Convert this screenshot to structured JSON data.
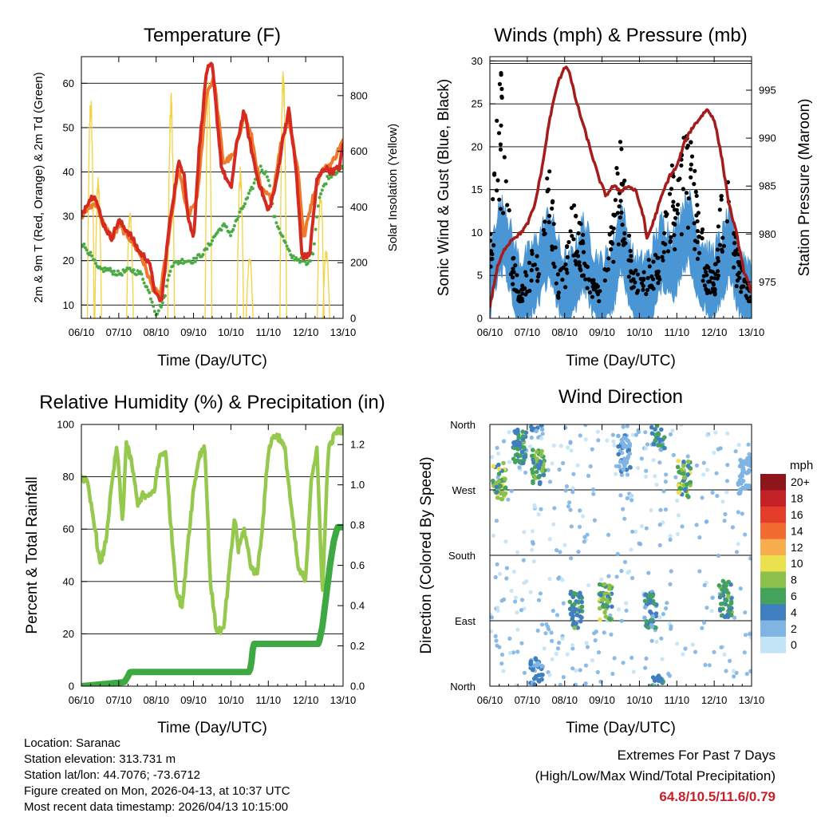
{
  "panels": {
    "temperature": {
      "title": "Temperature (F)",
      "xlabel": "Time (Day/UTC)",
      "ylabel_left": "2m & 9m T (Red, Orange) & 2m Td (Green)",
      "ylabel_right": "Solar Insolation (Yellow)"
    },
    "winds": {
      "title": "Winds (mph) & Pressure (mb)",
      "xlabel": "Time (Day/UTC)",
      "ylabel_left": "Sonic Wind & Gust (Blue, Black)",
      "ylabel_right": "Station Pressure (Maroon)"
    },
    "humidity": {
      "title": "Relative Humidity (%) & Precipitation (in)",
      "xlabel": "Time (Day/UTC)",
      "ylabel_left": "Percent & Total Rainfall"
    },
    "direction": {
      "title": "Wind Direction",
      "xlabel": "Time (Day/UTC)",
      "ylabel_left": "Direction (Colored By Speed)",
      "legend_title": "mph"
    }
  },
  "info": {
    "location": "Location: Saranac",
    "elevation": "Station elevation: 313.731 m",
    "latlon": "Station lat/lon: 44.7076; -73.6712",
    "created": "Figure created on Mon, 2026-04-13, at 10:37 UTC",
    "recent": "Most recent data timestamp: 2026/04/13 10:15:00"
  },
  "extremes": {
    "title": "Extremes For Past 7 Days",
    "subtitle": "(High/Low/Max Wind/Total Precipitation)",
    "values": "64.8/10.5/11.6/0.79"
  },
  "chart_data": [
    {
      "type": "line",
      "panel": "temperature",
      "x_ticks": [
        "06/10",
        "07/10",
        "08/10",
        "09/10",
        "10/10",
        "11/10",
        "12/10",
        "13/10"
      ],
      "x_range_days": [
        0,
        7
      ],
      "ylim": [
        7,
        66
      ],
      "yticks": [
        10,
        20,
        30,
        40,
        50,
        60
      ],
      "y2lim": [
        0,
        940
      ],
      "y2ticks": [
        0,
        200,
        400,
        600,
        800
      ],
      "series": [
        {
          "name": "2m T",
          "color": "#d42a20",
          "x": [
            0,
            0.15,
            0.35,
            0.55,
            0.8,
            1.0,
            1.3,
            1.55,
            1.8,
            2.0,
            2.15,
            2.35,
            2.6,
            2.75,
            2.85,
            3.0,
            3.15,
            3.35,
            3.5,
            3.75,
            4.0,
            4.15,
            4.35,
            4.5,
            4.7,
            5.0,
            5.2,
            5.4,
            5.55,
            5.75,
            5.9,
            6.1,
            6.3,
            6.5,
            6.7,
            6.9,
            7.0
          ],
          "values": [
            30,
            33,
            35,
            29,
            25,
            29,
            26,
            22,
            20,
            12,
            11,
            28,
            42,
            40,
            30,
            25,
            45,
            63,
            64,
            41,
            36,
            46,
            54,
            47,
            39,
            31,
            37,
            48,
            54,
            40,
            21,
            21,
            38,
            41,
            40,
            41,
            46
          ]
        },
        {
          "name": "9m T",
          "color": "#f07a2c",
          "x": [
            0,
            0.2,
            0.4,
            0.6,
            0.85,
            1.0,
            1.3,
            1.6,
            1.9,
            2.1,
            2.35,
            2.6,
            2.85,
            3.1,
            3.35,
            3.55,
            3.8,
            4.1,
            4.35,
            4.55,
            4.8,
            5.1,
            5.35,
            5.55,
            5.8,
            5.95,
            6.15,
            6.4,
            6.7,
            7.0
          ],
          "values": [
            30,
            32,
            33,
            28,
            25,
            28,
            25,
            21,
            14,
            12,
            26,
            41,
            30,
            34,
            58,
            61,
            42,
            44,
            53,
            48,
            36,
            34,
            47,
            52,
            40,
            25,
            33,
            40,
            42,
            47
          ]
        },
        {
          "name": "2m Td",
          "color": "#4aab45",
          "x": [
            0,
            0.2,
            0.45,
            0.7,
            1.0,
            1.3,
            1.6,
            1.85,
            2.0,
            2.2,
            2.4,
            2.7,
            3.0,
            3.3,
            3.6,
            3.8,
            4.0,
            4.2,
            4.5,
            4.8,
            5.0,
            5.15,
            5.3,
            5.6,
            5.9,
            6.05,
            6.2,
            6.35,
            6.6,
            7.0
          ],
          "values": [
            24,
            22,
            18,
            18,
            17,
            18,
            17,
            12,
            8,
            11,
            19,
            20,
            20,
            22,
            26,
            28,
            26,
            30,
            35,
            41,
            39,
            30,
            27,
            21,
            20,
            19,
            22,
            34,
            39,
            41
          ]
        },
        {
          "name": "Solar Insolation",
          "color": "#f4d240",
          "axis": "right",
          "peaks": [
            [
              0.25,
              820
            ],
            [
              0.45,
              520
            ],
            [
              1.3,
              400
            ],
            [
              2.4,
              830
            ],
            [
              3.4,
              890
            ],
            [
              4.25,
              550
            ],
            [
              4.5,
              230
            ],
            [
              5.4,
              920
            ],
            [
              6.4,
              480
            ],
            [
              6.55,
              250
            ]
          ]
        }
      ]
    },
    {
      "type": "line",
      "panel": "winds",
      "x_ticks": [
        "06/10",
        "07/10",
        "08/10",
        "09/10",
        "10/10",
        "11/10",
        "12/10",
        "13/10"
      ],
      "x_range_days": [
        0,
        7
      ],
      "ylim": [
        0,
        30.5
      ],
      "yticks": [
        0,
        5,
        10,
        15,
        20,
        25,
        30
      ],
      "y2lim": [
        971.2,
        998.5
      ],
      "y2ticks": [
        975,
        980,
        985,
        990,
        995
      ],
      "series": [
        {
          "name": "Sonic Wind",
          "color": "#4a96d4",
          "x": [
            0,
            0.2,
            0.4,
            0.6,
            0.8,
            1.0,
            1.3,
            1.6,
            1.9,
            2.1,
            2.3,
            2.5,
            2.8,
            3.0,
            3.3,
            3.5,
            3.8,
            4.0,
            4.3,
            4.6,
            4.9,
            5.1,
            5.3,
            5.6,
            5.9,
            6.2,
            6.4,
            6.7,
            7.0
          ],
          "values": [
            3,
            8,
            9,
            5,
            2,
            3,
            5,
            8,
            3,
            2,
            4,
            7,
            3,
            2,
            4,
            9,
            3,
            2,
            3,
            7,
            5,
            8,
            10,
            5,
            3,
            5,
            8,
            3,
            2
          ]
        },
        {
          "name": "Gust",
          "color": "#000000",
          "style": "markers",
          "x": [
            0,
            0.1,
            0.2,
            0.3,
            0.4,
            0.6,
            0.8,
            1.0,
            1.3,
            1.5,
            1.6,
            1.8,
            2.0,
            2.2,
            2.4,
            2.7,
            3.0,
            3.2,
            3.4,
            3.5,
            3.8,
            4.0,
            4.3,
            4.6,
            4.8,
            5.0,
            5.1,
            5.2,
            5.3,
            5.6,
            5.8,
            6.0,
            6.2,
            6.4,
            6.6,
            6.8,
            7.0
          ],
          "values": [
            8,
            18,
            23,
            28,
            20,
            8,
            3,
            6,
            10,
            16,
            20,
            5,
            6,
            13,
            12,
            5,
            3,
            10,
            18,
            20,
            6,
            5,
            7,
            8,
            19,
            14,
            18,
            24,
            22,
            13,
            6,
            5,
            15,
            21,
            8,
            6,
            3
          ]
        },
        {
          "name": "Station Pressure",
          "color": "#a51c1c",
          "axis": "right",
          "x": [
            0,
            0.2,
            0.4,
            0.6,
            0.8,
            1.0,
            1.2,
            1.4,
            1.6,
            1.8,
            2.0,
            2.1,
            2.3,
            2.6,
            2.9,
            3.1,
            3.3,
            3.5,
            3.7,
            3.9,
            4.1,
            4.2,
            4.35,
            4.6,
            4.8,
            5.0,
            5.2,
            5.4,
            5.6,
            5.8,
            6.0,
            6.2,
            6.4,
            6.6,
            6.8,
            7.0
          ],
          "values": [
            972.5,
            976.5,
            978.5,
            979.5,
            980,
            981,
            983,
            987,
            992,
            995.5,
            997.5,
            997.2,
            994,
            990,
            986,
            984,
            985,
            984.5,
            985,
            984.5,
            982,
            979.5,
            981,
            984,
            986,
            987,
            989.5,
            991,
            992,
            993,
            992,
            988,
            983,
            980,
            976,
            974
          ]
        }
      ]
    },
    {
      "type": "line",
      "panel": "humidity",
      "x_ticks": [
        "06/10",
        "07/10",
        "08/10",
        "09/10",
        "10/10",
        "11/10",
        "12/10",
        "13/10"
      ],
      "x_range_days": [
        0,
        7
      ],
      "ylim": [
        0,
        100
      ],
      "yticks": [
        0,
        20,
        40,
        60,
        80,
        100
      ],
      "y2lim": [
        0,
        1.3
      ],
      "y2ticks": [
        0.0,
        0.2,
        0.4,
        0.6,
        0.8,
        1.0,
        1.2
      ],
      "series": [
        {
          "name": "Relative Humidity",
          "color": "#95c94e",
          "x": [
            0,
            0.15,
            0.35,
            0.5,
            0.65,
            0.8,
            0.95,
            1.1,
            1.2,
            1.35,
            1.5,
            1.65,
            1.8,
            1.95,
            2.1,
            2.25,
            2.4,
            2.55,
            2.7,
            2.85,
            3.0,
            3.15,
            3.3,
            3.45,
            3.6,
            3.8,
            4.0,
            4.1,
            4.2,
            4.35,
            4.55,
            4.7,
            4.85,
            5.0,
            5.15,
            5.3,
            5.45,
            5.6,
            5.8,
            6.0,
            6.15,
            6.3,
            6.45,
            6.6,
            6.8,
            7.0
          ],
          "values": [
            80,
            78,
            62,
            46,
            55,
            75,
            92,
            62,
            93,
            85,
            70,
            73,
            72,
            75,
            88,
            90,
            60,
            36,
            30,
            55,
            75,
            88,
            92,
            40,
            22,
            21,
            50,
            65,
            52,
            60,
            45,
            43,
            62,
            90,
            96,
            95,
            90,
            70,
            45,
            40,
            80,
            90,
            35,
            90,
            97,
            98
          ]
        },
        {
          "name": "Total Precipitation",
          "color": "#3ea843",
          "axis": "right",
          "x": [
            0,
            1.15,
            1.25,
            1.3,
            4.5,
            4.55,
            4.6,
            6.35,
            6.45,
            6.55,
            6.65,
            6.75,
            6.85,
            7.0
          ],
          "values": [
            0.0,
            0.02,
            0.05,
            0.07,
            0.07,
            0.12,
            0.21,
            0.21,
            0.3,
            0.45,
            0.6,
            0.72,
            0.79,
            0.79
          ]
        }
      ]
    },
    {
      "type": "scatter",
      "panel": "direction",
      "x_ticks": [
        "06/10",
        "07/10",
        "08/10",
        "09/10",
        "10/10",
        "11/10",
        "12/10",
        "13/10"
      ],
      "x_range_days": [
        0,
        7
      ],
      "y_labels": [
        "North",
        "East",
        "South",
        "West",
        "North"
      ],
      "y_values_deg": [
        0,
        90,
        180,
        270,
        360
      ],
      "legend": {
        "labels": [
          "20+",
          "18",
          "16",
          "14",
          "12",
          "10",
          "8",
          "6",
          "4",
          "2",
          "0"
        ],
        "colors": [
          "#8e1519",
          "#c42127",
          "#e43d2a",
          "#f26b2f",
          "#f8ad4f",
          "#ebe04e",
          "#8cc24b",
          "#45a25a",
          "#3f7fc0",
          "#7fb4e3",
          "#c3e3f6"
        ]
      },
      "clusters": [
        {
          "x": 0.25,
          "dir_deg": 282,
          "speed": 9
        },
        {
          "x": 0.8,
          "dir_deg": 330,
          "speed": 6
        },
        {
          "x": 1.3,
          "dir_deg": 300,
          "speed": 7
        },
        {
          "x": 1.25,
          "dir_deg": 15,
          "speed": 4
        },
        {
          "x": 2.3,
          "dir_deg": 105,
          "speed": 6
        },
        {
          "x": 3.1,
          "dir_deg": 115,
          "speed": 8
        },
        {
          "x": 3.6,
          "dir_deg": 320,
          "speed": 3
        },
        {
          "x": 4.3,
          "dir_deg": 105,
          "speed": 5
        },
        {
          "x": 4.5,
          "dir_deg": 350,
          "speed": 5
        },
        {
          "x": 5.2,
          "dir_deg": 285,
          "speed": 9
        },
        {
          "x": 6.3,
          "dir_deg": 120,
          "speed": 6
        },
        {
          "x": 6.8,
          "dir_deg": 290,
          "speed": 2
        }
      ]
    }
  ]
}
